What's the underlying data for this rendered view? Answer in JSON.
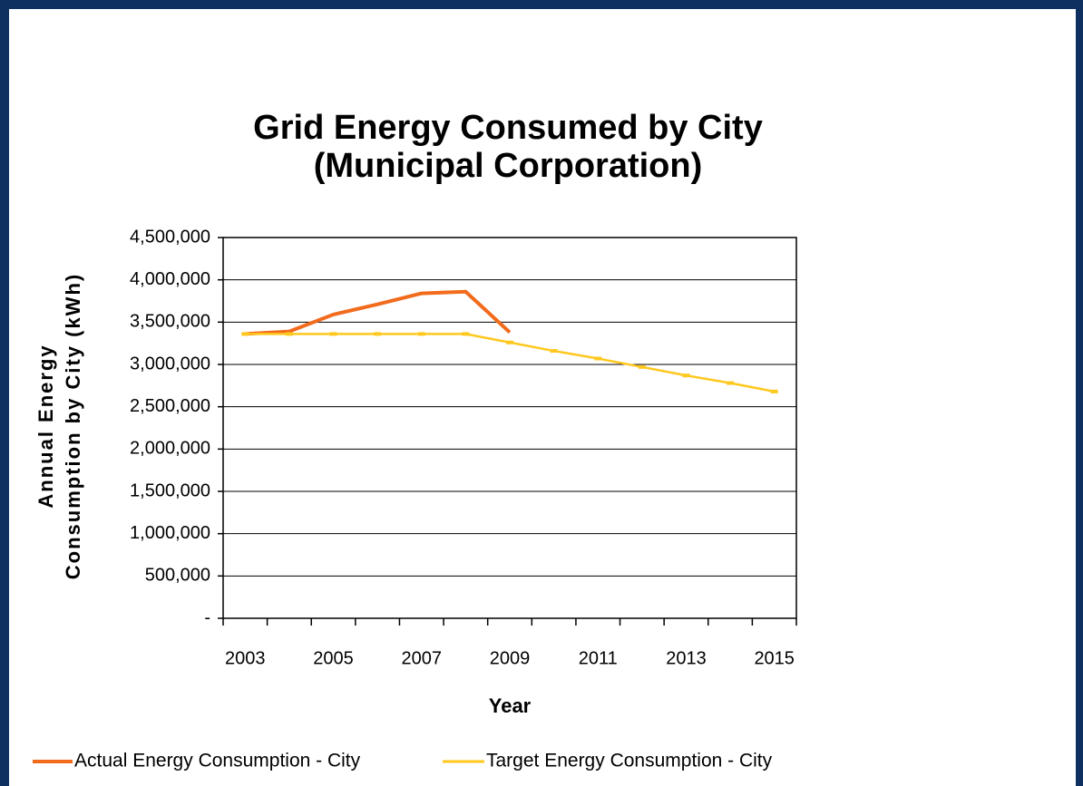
{
  "chart_data": {
    "type": "line",
    "title": [
      "Grid Energy Consumed by City",
      "(Municipal Corporation)"
    ],
    "y_label": [
      "Annual Energy",
      "Consumption by City (kWh)"
    ],
    "x_label": "Year",
    "categories": [
      "2003",
      null,
      "2005",
      null,
      "2007",
      null,
      "2009",
      null,
      "2011",
      null,
      "2013",
      null,
      "2015"
    ],
    "series": [
      {
        "name": "Actual Energy Consumption - City",
        "color": "#f26b1d",
        "values": [
          3360000,
          3390000,
          3590000,
          3710000,
          3840000,
          3860000,
          3380000,
          null,
          null,
          null,
          null,
          null,
          null
        ]
      },
      {
        "name": "Target Energy Consumption - City",
        "color": "#ffc81e",
        "values": [
          3360000,
          3360000,
          3360000,
          3360000,
          3360000,
          3360000,
          3260000,
          3160000,
          3070000,
          2970000,
          2870000,
          2780000,
          2680000
        ]
      }
    ],
    "ylim": [
      0,
      4500000
    ],
    "yticks": [
      {
        "value": 0,
        "label": "-"
      },
      {
        "value": 500000,
        "label": "500,000"
      },
      {
        "value": 1000000,
        "label": "1,000,000"
      },
      {
        "value": 1500000,
        "label": "1,500,000"
      },
      {
        "value": 2000000,
        "label": "2,000,000"
      },
      {
        "value": 2500000,
        "label": "2,500,000"
      },
      {
        "value": 3000000,
        "label": "3,000,000"
      },
      {
        "value": 3500000,
        "label": "3,500,000"
      },
      {
        "value": 4000000,
        "label": "4,000,000"
      },
      {
        "value": 4500000,
        "label": "4,500,000"
      }
    ],
    "grid": true,
    "legend": "bottom"
  }
}
